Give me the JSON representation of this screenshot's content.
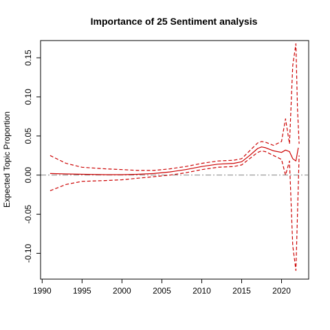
{
  "chart_data": {
    "type": "line",
    "title": "Importance of 25 Sentiment analysis",
    "xlabel": "",
    "ylabel": "Expected Topic Proportion",
    "xlim": [
      1989.8,
      2023.4
    ],
    "ylim": [
      -0.133,
      0.172
    ],
    "x_ticks": [
      1990,
      1995,
      2000,
      2005,
      2010,
      2015,
      2020
    ],
    "y_ticks": [
      -0.1,
      -0.05,
      0.0,
      0.05,
      0.1,
      0.15
    ],
    "y_tick_labels": [
      "-0.10",
      "-0.05",
      "0.00",
      "0.05",
      "0.10",
      "0.15"
    ],
    "reference_line": {
      "y": 0,
      "style": "dash-dot",
      "color": "#808080"
    },
    "grid": false,
    "legend": "none",
    "series": [
      {
        "role": "estimate",
        "style": "solid",
        "color": "#cc0000",
        "x": [
          1991,
          1993,
          1995,
          1998,
          2000,
          2002,
          2004,
          2006,
          2008,
          2010,
          2012,
          2014,
          2015,
          2016,
          2017,
          2017.5,
          2018,
          2019,
          2020,
          2020.5,
          2021,
          2021.4,
          2021.8,
          2022.1
        ],
        "y": [
          0.002,
          0.0015,
          0.001,
          0.0005,
          0.0005,
          0.001,
          0.002,
          0.004,
          0.007,
          0.011,
          0.014,
          0.015,
          0.017,
          0.025,
          0.034,
          0.036,
          0.035,
          0.031,
          0.029,
          0.032,
          0.03,
          0.021,
          0.018,
          0.035
        ]
      },
      {
        "role": "upper-ci",
        "style": "dashed",
        "color": "#cc0000",
        "x": [
          1991,
          1993,
          1995,
          1998,
          2000,
          2002,
          2004,
          2006,
          2008,
          2010,
          2012,
          2014,
          2015,
          2016,
          2017,
          2017.5,
          2018,
          2019,
          2020,
          2020.5,
          2021,
          2021.4,
          2021.8,
          2022,
          2022.2
        ],
        "y": [
          0.025,
          0.015,
          0.01,
          0.008,
          0.007,
          0.006,
          0.006,
          0.008,
          0.011,
          0.015,
          0.018,
          0.019,
          0.021,
          0.031,
          0.041,
          0.043,
          0.042,
          0.038,
          0.043,
          0.072,
          0.04,
          0.14,
          0.168,
          0.085,
          0.04
        ]
      },
      {
        "role": "lower-ci",
        "style": "dashed",
        "color": "#cc0000",
        "x": [
          1991,
          1993,
          1995,
          1998,
          2000,
          2002,
          2004,
          2006,
          2008,
          2010,
          2012,
          2014,
          2015,
          2016,
          2017,
          2017.5,
          2018,
          2019,
          2020,
          2020.5,
          2021,
          2021.4,
          2021.8,
          2022,
          2022.2
        ],
        "y": [
          -0.02,
          -0.012,
          -0.008,
          -0.007,
          -0.006,
          -0.004,
          -0.002,
          0.0,
          0.003,
          0.007,
          0.01,
          0.011,
          0.013,
          0.021,
          0.029,
          0.031,
          0.03,
          0.025,
          0.02,
          0.0,
          0.018,
          -0.09,
          -0.122,
          -0.05,
          0.025
        ]
      }
    ]
  }
}
